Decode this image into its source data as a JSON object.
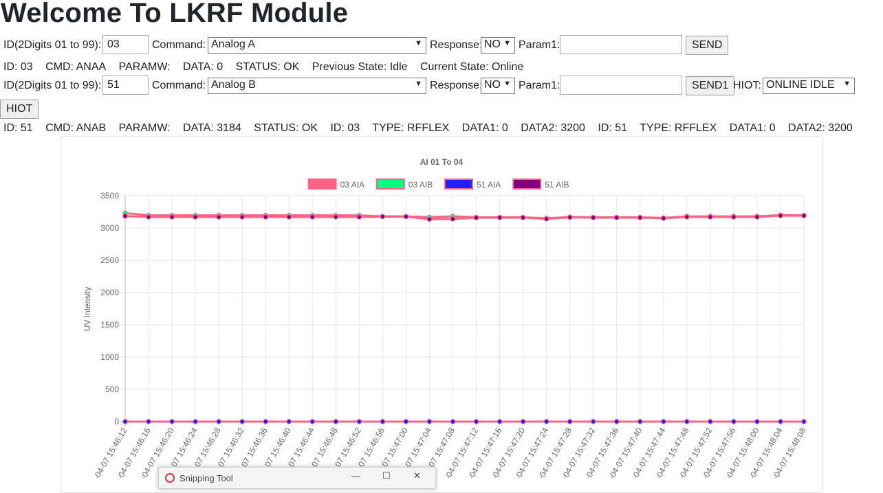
{
  "page": {
    "heading": "Welcome To LKRF Module"
  },
  "row1": {
    "id_label": "ID(2Digits 01 to 99):",
    "id_value": "03",
    "command_label": "Command:",
    "command_value": "Analog A",
    "response_label": "Response:",
    "response_value": "NO",
    "param_label": "Param1:",
    "param_value": "",
    "send_label": "SEND"
  },
  "status1": {
    "id": "ID: 03",
    "cmd": "CMD: ANAA",
    "paramw": "PARAMW:",
    "data": "DATA: 0",
    "status": "STATUS: OK",
    "prev": "Previous State: Idle",
    "curr": "Current State: Online"
  },
  "row2": {
    "id_label": "ID(2Digits 01 to 99):",
    "id_value": "51",
    "command_label": "Command:",
    "command_value": "Analog B",
    "response_label": "Response:",
    "response_value": "NO",
    "param_label": "Param1:",
    "param_value": "",
    "send_label": "SEND1",
    "hiot_label": "HIOT:",
    "hiot_value": "ONLINE IDLE",
    "hiot_button": "HIOT"
  },
  "status2": {
    "id": "ID: 51",
    "cmd": "CMD: ANAB",
    "paramw": "PARAMW:",
    "data": "DATA: 3184",
    "status": "STATUS: OK",
    "id_b": "ID: 03",
    "type_b": "TYPE: RFFLEX",
    "data1_b": "DATA1: 0",
    "data2_b": "DATA2: 3200",
    "id_c": "ID: 51",
    "type_c": "TYPE: RFFLEX",
    "data1_c": "DATA1: 0",
    "data2_c": "DATA2: 3200"
  },
  "taskbar": {
    "title": "Snipping Tool",
    "icon": "snipping-tool-icon"
  },
  "chart_data": {
    "type": "line",
    "title": "AI 01 To 04",
    "ylabel": "UV Intensity",
    "xlabel": "",
    "ylim": [
      0,
      3500
    ],
    "yticks": [
      0,
      500,
      1000,
      1500,
      2000,
      2500,
      3000,
      3500
    ],
    "grid": true,
    "legend_position": "top",
    "x": [
      "2020-04-07 15:46:12",
      "2020-04-07 15:46:16",
      "2020-04-07 15:46:20",
      "2020-04-07 15:46:24",
      "2020-04-07 15:46:28",
      "2020-04-07 15:46:32",
      "2020-04-07 15:46:36",
      "2020-04-07 15:46:40",
      "2020-04-07 15:46:44",
      "2020-04-07 15:46:48",
      "2020-04-07 15:46:52",
      "2020-04-07 15:46:56",
      "2020-04-07 15:47:00",
      "2020-04-07 15:47:04",
      "2020-04-07 15:47:08",
      "2020-04-07 15:47:12",
      "2020-04-07 15:47:16",
      "2020-04-07 15:47:20",
      "2020-04-07 15:47:24",
      "2020-04-07 15:47:28",
      "2020-04-07 15:47:32",
      "2020-04-07 15:47:36",
      "2020-04-07 15:47:40",
      "2020-04-07 15:47:44",
      "2020-04-07 15:47:48",
      "2020-04-07 15:47:52",
      "2020-04-07 15:47:56",
      "2020-04-07 15:48:00",
      "2020-04-07 15:48:04",
      "2020-04-07 15:48:08"
    ],
    "series": [
      {
        "name": "03 AIA",
        "color": "#ff6384",
        "border": "#ff6384",
        "values": [
          0,
          0,
          0,
          0,
          0,
          0,
          0,
          0,
          0,
          0,
          0,
          0,
          0,
          0,
          0,
          0,
          0,
          0,
          0,
          0,
          0,
          0,
          0,
          0,
          0,
          0,
          0,
          0,
          0,
          0
        ]
      },
      {
        "name": "03 AIB",
        "color": "#00ff80",
        "border": "#ff6384",
        "values": [
          3230,
          3195,
          3195,
          3195,
          3195,
          3195,
          3195,
          3195,
          3195,
          3195,
          3195,
          3180,
          3180,
          3165,
          3180,
          3165,
          3165,
          3165,
          3150,
          3170,
          3165,
          3165,
          3165,
          3155,
          3180,
          3180,
          3180,
          3180,
          3200,
          3195
        ]
      },
      {
        "name": "51 AIA",
        "color": "#2020ff",
        "border": "#ff6384",
        "values": [
          0,
          0,
          0,
          0,
          0,
          0,
          0,
          0,
          0,
          0,
          0,
          0,
          0,
          0,
          0,
          0,
          0,
          0,
          0,
          0,
          0,
          0,
          0,
          0,
          0,
          0,
          0,
          0,
          0,
          0
        ]
      },
      {
        "name": "51 AIB",
        "color": "#800080",
        "border": "#ff6384",
        "values": [
          3184,
          3170,
          3170,
          3170,
          3170,
          3170,
          3170,
          3170,
          3170,
          3170,
          3170,
          3175,
          3175,
          3135,
          3140,
          3160,
          3160,
          3160,
          3140,
          3165,
          3160,
          3160,
          3160,
          3150,
          3170,
          3170,
          3170,
          3170,
          3190,
          3190
        ]
      }
    ]
  }
}
